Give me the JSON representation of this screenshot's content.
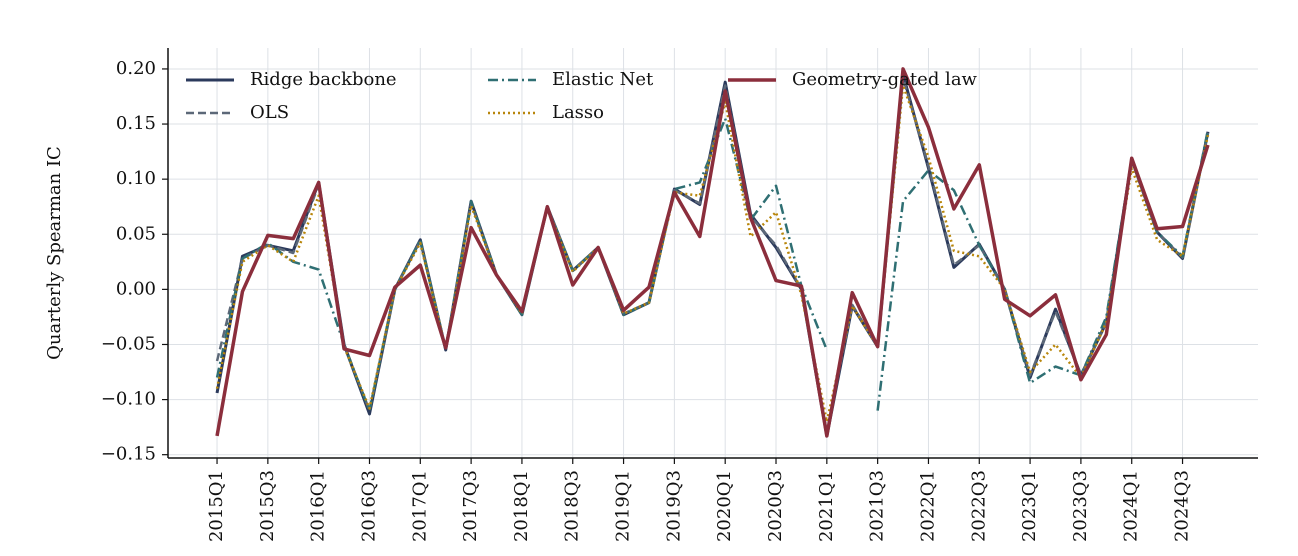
{
  "chart_data": {
    "type": "line",
    "y_label": "Quarterly Spearman IC",
    "categories": [
      "2015Q1",
      null,
      "2015Q3",
      null,
      "2016Q1",
      null,
      "2016Q3",
      null,
      "2017Q1",
      null,
      "2017Q3",
      null,
      "2018Q1",
      null,
      "2018Q3",
      null,
      "2019Q1",
      null,
      "2019Q3",
      null,
      "2020Q1",
      null,
      "2020Q3",
      null,
      "2021Q1",
      null,
      "2021Q3",
      null,
      "2022Q1",
      null,
      "2022Q3",
      null,
      "2023Q1",
      null,
      "2023Q3",
      null,
      "2024Q1",
      null,
      "2024Q3",
      null
    ],
    "ylim": [
      -0.153,
      0.219
    ],
    "yticks": [
      {
        "value": -0.15,
        "label": "−0.15"
      },
      {
        "value": -0.1,
        "label": "−0.10"
      },
      {
        "value": -0.05,
        "label": "−0.05"
      },
      {
        "value": 0,
        "label": "0.00"
      },
      {
        "value": 0.05,
        "label": "0.05"
      },
      {
        "value": 0.1,
        "label": "0.10"
      },
      {
        "value": 0.15,
        "label": "0.15"
      },
      {
        "value": 0.2,
        "label": "0.20"
      }
    ],
    "grid": true,
    "legend": "upper left",
    "series": [
      {
        "name": "Ridge backbone",
        "color": "#2b3a5c",
        "linestyle": "solid",
        "linewidth": 3,
        "values": [
          -0.094,
          0.03,
          0.04,
          0.035,
          0.097,
          -0.05,
          -0.113,
          0.0,
          0.045,
          -0.055,
          0.08,
          0.013,
          -0.023,
          0.075,
          0.017,
          0.038,
          -0.023,
          -0.012,
          0.091,
          0.077,
          0.188,
          0.068,
          0.038,
          0.0,
          -0.133,
          -0.015,
          -0.052,
          0.195,
          0.11,
          0.02,
          0.041,
          0.0,
          -0.08,
          -0.018,
          -0.078,
          -0.03,
          0.118,
          0.052,
          0.028,
          0.143
        ]
      },
      {
        "name": "OLS",
        "color": "#5c6878",
        "linestyle": "dashed",
        "linewidth": 2.5,
        "values": [
          -0.065,
          0.028,
          0.04,
          0.033,
          0.095,
          -0.05,
          -0.11,
          0.0,
          0.044,
          -0.054,
          0.078,
          0.013,
          -0.022,
          0.075,
          0.017,
          0.038,
          -0.022,
          -0.012,
          0.09,
          0.078,
          0.185,
          0.066,
          0.04,
          0.0,
          -0.13,
          -0.014,
          -0.052,
          0.192,
          0.112,
          0.022,
          0.04,
          0.0,
          -0.078,
          -0.02,
          -0.078,
          -0.03,
          0.117,
          0.052,
          0.029,
          0.142
        ]
      },
      {
        "name": "Elastic Net",
        "color": "#2f6f73",
        "linestyle": "dashdot",
        "linewidth": 2.5,
        "values": [
          -0.08,
          0.028,
          0.042,
          0.025,
          0.018,
          -0.05,
          -0.11,
          0.0,
          0.045,
          -0.055,
          0.08,
          0.013,
          -0.023,
          0.075,
          0.017,
          0.038,
          -0.023,
          -0.012,
          0.091,
          0.097,
          0.155,
          0.063,
          0.094,
          0.003,
          -0.055,
          null,
          -0.11,
          0.08,
          0.108,
          0.09,
          0.04,
          0.0,
          -0.085,
          -0.07,
          -0.078,
          -0.025,
          0.118,
          0.052,
          0.03,
          0.145
        ]
      },
      {
        "name": "Lasso",
        "color": "#b8860b",
        "linestyle": "dotted",
        "linewidth": 2.5,
        "values": [
          -0.09,
          0.025,
          0.04,
          0.025,
          0.085,
          -0.052,
          -0.108,
          0.0,
          0.042,
          -0.054,
          0.076,
          0.013,
          -0.022,
          0.074,
          0.016,
          0.038,
          -0.022,
          -0.012,
          0.088,
          0.085,
          0.17,
          0.048,
          0.07,
          -0.005,
          -0.12,
          -0.015,
          -0.052,
          0.185,
          0.12,
          0.035,
          0.03,
          0.0,
          -0.075,
          -0.05,
          -0.08,
          -0.03,
          0.11,
          0.045,
          0.03,
          0.14
        ]
      },
      {
        "name": "Geometry-gated law",
        "color": "#8b2e3c",
        "linestyle": "solid",
        "linewidth": 3.5,
        "values": [
          -0.133,
          -0.002,
          0.049,
          0.046,
          0.097,
          -0.054,
          -0.06,
          0.002,
          0.022,
          -0.053,
          0.056,
          0.013,
          -0.02,
          0.075,
          0.004,
          0.038,
          -0.019,
          0.002,
          0.088,
          0.048,
          0.18,
          0.065,
          0.008,
          0.003,
          -0.133,
          -0.003,
          -0.052,
          0.2,
          0.147,
          0.073,
          0.113,
          -0.009,
          -0.024,
          -0.005,
          -0.082,
          -0.041,
          0.119,
          0.055,
          0.057,
          0.131
        ]
      }
    ]
  }
}
